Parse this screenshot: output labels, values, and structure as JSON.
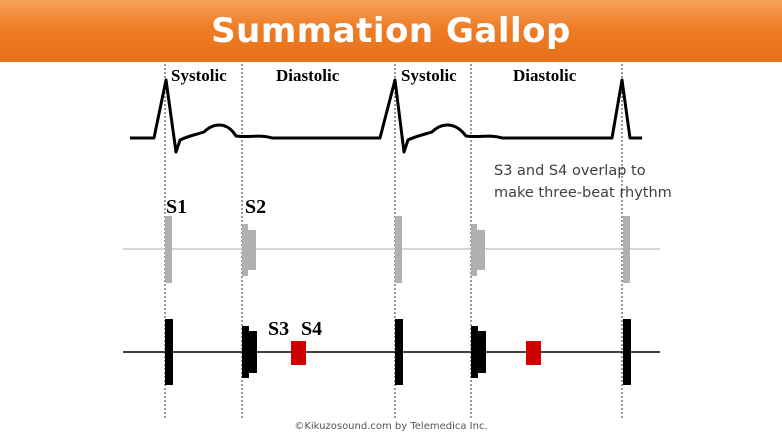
{
  "header": {
    "title": "Summation Gallop"
  },
  "phases": [
    "Systolic",
    "Diastolic",
    "Systolic",
    "Diastolic"
  ],
  "sound_labels": {
    "s1": "S1",
    "s2": "S2",
    "s3": "S3",
    "s4": "S4"
  },
  "note": {
    "line1": "S3 and S4 overlap to",
    "line2": "make three-beat rhythm"
  },
  "footer": {
    "copyright": "©Kikuzosound.com by Telemedica Inc."
  },
  "colors": {
    "banner": "#ee7d25",
    "normal_sound": "#b0b0b0",
    "abnormal_sound": "#000000",
    "gallop_sound": "#cc0000"
  }
}
